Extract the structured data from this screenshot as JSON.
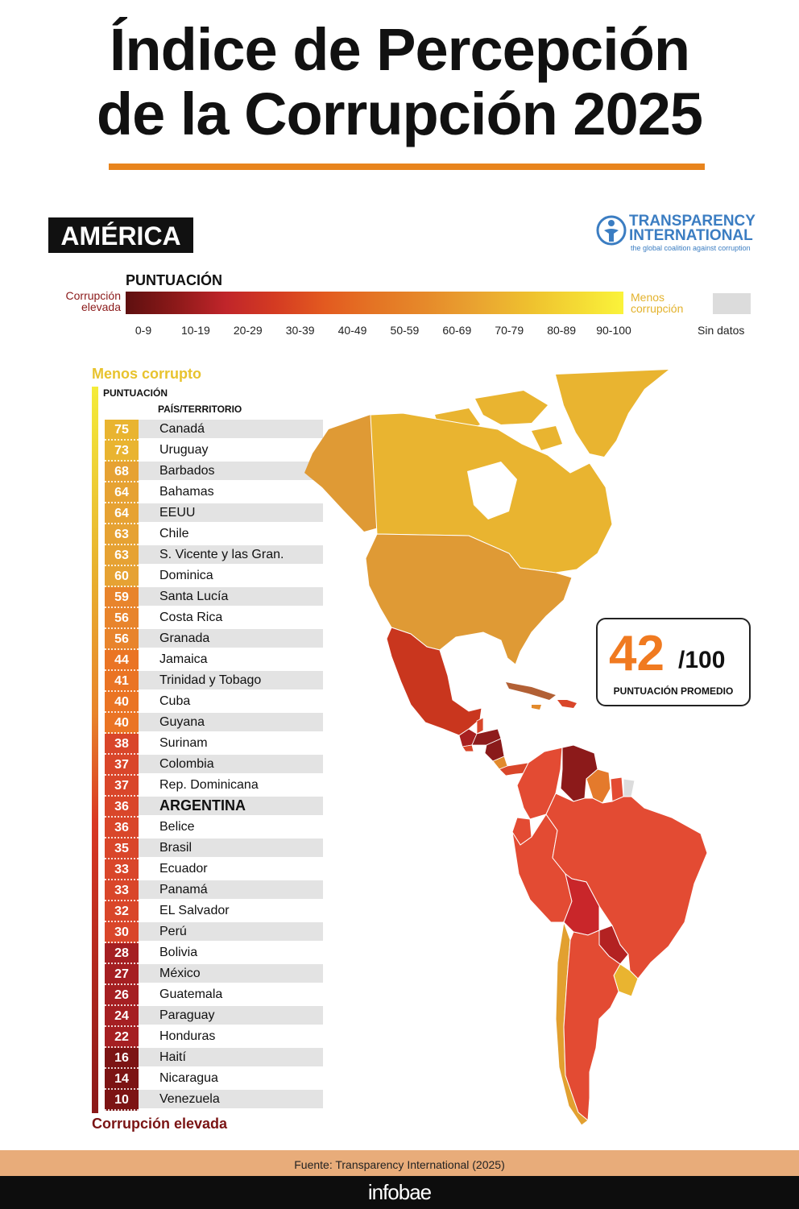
{
  "header": {
    "title_line1": "Índice de Percepción",
    "title_line2": "de la Corrupción 2025",
    "region": "AMÉRICA"
  },
  "logo": {
    "name": "TRANSPARENCY\nINTERNATIONAL",
    "tagline": "the global coalition against corruption"
  },
  "scale": {
    "title": "PUNTUACIÓN",
    "left_label": "Corrupción elevada",
    "right_label": "Menos corrupción",
    "ticks": [
      "0-9",
      "10-19",
      "20-29",
      "30-39",
      "40-49",
      "50-59",
      "60-69",
      "70-79",
      "80-89",
      "90-100"
    ],
    "no_data_label": "Sin datos"
  },
  "ranking": {
    "top_label": "Menos corrupto",
    "score_header": "PUNTUACIÓN",
    "country_header": "PAÍS/TERRITORIO",
    "bottom_label": "Corrupción elevada"
  },
  "average": {
    "value": "42",
    "denominator": "/100",
    "label": "PUNTUACIÓN PROMEDIO"
  },
  "footer": {
    "source": "Fuente: Transparency International (2025)",
    "brand": "infobae"
  },
  "colors": {
    "accent_orange": "#f07a20",
    "rule_orange": "#e8841d",
    "ti_blue": "#3b7dc2",
    "no_data_gray": "#dcdcdc"
  },
  "chart_data": {
    "type": "table",
    "title": "Índice de Percepción de la Corrupción 2025",
    "categories": [
      "Canadá",
      "Uruguay",
      "Barbados",
      "Bahamas",
      "EEUU",
      "Chile",
      "S. Vicente y las Gran.",
      "Dominica",
      "Santa Lucía",
      "Costa Rica",
      "Granada",
      "Jamaica",
      "Trinidad y Tobago",
      "Cuba",
      "Guyana",
      "Surinam",
      "Colombia",
      "Rep. Dominicana",
      "ARGENTINA",
      "Belice",
      "Brasil",
      "Ecuador",
      "Panamá",
      "EL Salvador",
      "Perú",
      "Bolivia",
      "México",
      "Guatemala",
      "Paraguay",
      "Honduras",
      "Haití",
      "Nicaragua",
      "Venezuela"
    ],
    "values": [
      75,
      73,
      68,
      64,
      64,
      63,
      63,
      60,
      59,
      56,
      56,
      44,
      41,
      40,
      40,
      38,
      37,
      37,
      36,
      36,
      35,
      33,
      33,
      32,
      30,
      28,
      27,
      26,
      24,
      22,
      16,
      14,
      10
    ],
    "highlight": "ARGENTINA",
    "value_range": [
      0,
      100
    ],
    "legend_bins": [
      "0-9",
      "10-19",
      "20-29",
      "30-39",
      "40-49",
      "50-59",
      "60-69",
      "70-79",
      "80-89",
      "90-100"
    ]
  }
}
